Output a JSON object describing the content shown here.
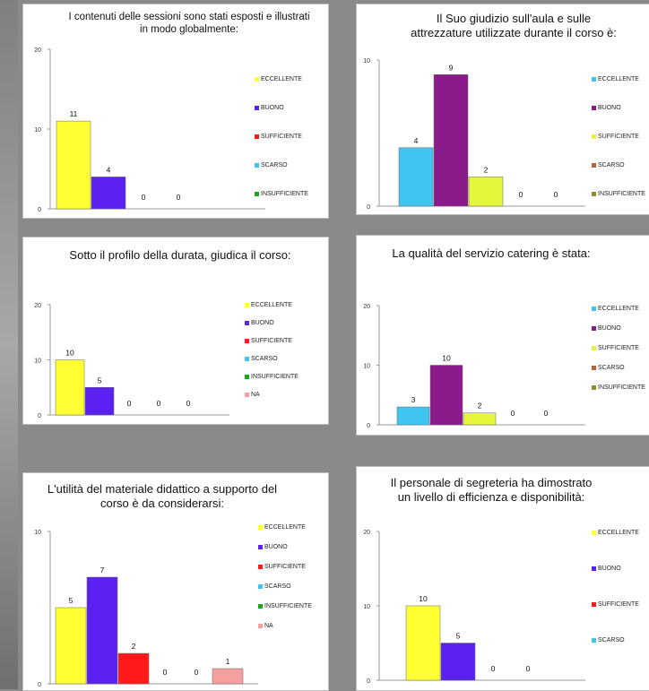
{
  "colors": {
    "ECCELLENTE": "#ffff33",
    "BUONO": "#5b21f0",
    "SUFFICIENTE": "#ff1a1a",
    "SCARSO": "#3ec6f0",
    "INSUFFICIENTE": "#1aa81a",
    "NA": "#f4a0a0",
    "violet": "#8b1a8b",
    "lime": "#e5f53a",
    "brown": "#b0653a",
    "olive": "#8c8c2a"
  },
  "chart_data": [
    {
      "type": "bar",
      "title": "I contenuti delle sessioni sono stati esposti e illustrati in modo globalmente:",
      "ylim": [
        0,
        20
      ],
      "yticks": [
        0,
        10,
        20
      ],
      "values": [
        11,
        4,
        0,
        0
      ],
      "bar_colors": [
        "#ffff33",
        "#5b21f0",
        "#ff1a1a",
        "#3ec6f0"
      ],
      "legend": [
        {
          "label": "ECCELLENTE",
          "color": "#ffff33"
        },
        {
          "label": "BUONO",
          "color": "#5b21f0"
        },
        {
          "label": "SUFFICIENTE",
          "color": "#ff1a1a"
        },
        {
          "label": "SCARSO",
          "color": "#3ec6f0"
        },
        {
          "label": "INSUFFICIENTE",
          "color": "#1aa81a"
        }
      ]
    },
    {
      "type": "bar",
      "title": "Il Suo giudizio sull'aula e sulle attrezzature utilizzate durante il corso è:",
      "ylim": [
        0,
        10
      ],
      "yticks": [
        0,
        10
      ],
      "values": [
        4,
        9,
        2,
        0,
        0
      ],
      "bar_colors": [
        "#3ec6f0",
        "#8b1a8b",
        "#e5f53a",
        "#b0653a",
        "#8c8c2a"
      ],
      "legend": [
        {
          "label": "ECCELLENTE",
          "color": "#3ec6f0"
        },
        {
          "label": "BUONO",
          "color": "#8b1a8b"
        },
        {
          "label": "SUFFICIENTE",
          "color": "#e5f53a"
        },
        {
          "label": "SCARSO",
          "color": "#b0653a"
        },
        {
          "label": "INSUFFICIENTE",
          "color": "#8c8c2a"
        }
      ]
    },
    {
      "type": "bar",
      "title": "Sotto il profilo della durata, giudica il corso:",
      "ylim": [
        0,
        20
      ],
      "yticks": [
        0,
        10,
        20
      ],
      "values": [
        10,
        5,
        0,
        0,
        0
      ],
      "bar_colors": [
        "#ffff33",
        "#5b21f0",
        "#ff1a1a",
        "#3ec6f0",
        "#f4a0a0"
      ],
      "legend": [
        {
          "label": "ECCELLENTE",
          "color": "#ffff33"
        },
        {
          "label": "BUONO",
          "color": "#5b21f0"
        },
        {
          "label": "SUFFICIENTE",
          "color": "#ff1a1a"
        },
        {
          "label": "SCARSO",
          "color": "#3ec6f0"
        },
        {
          "label": "INSUFFICIENTE",
          "color": "#1aa81a"
        },
        {
          "label": "NA",
          "color": "#f4a0a0"
        }
      ]
    },
    {
      "type": "bar",
      "title": "La qualità del servizio catering è stata:",
      "ylim": [
        0,
        20
      ],
      "yticks": [
        0,
        10,
        20
      ],
      "values": [
        3,
        10,
        2,
        0,
        0
      ],
      "bar_colors": [
        "#3ec6f0",
        "#8b1a8b",
        "#e5f53a",
        "#b0653a",
        "#8c8c2a"
      ],
      "legend": [
        {
          "label": "ECCELLENTE",
          "color": "#3ec6f0"
        },
        {
          "label": "BUONO",
          "color": "#8b1a8b"
        },
        {
          "label": "SUFFICIENTE",
          "color": "#e5f53a"
        },
        {
          "label": "SCARSO",
          "color": "#b0653a"
        },
        {
          "label": "INSUFFICIENTE",
          "color": "#8c8c2a"
        }
      ]
    },
    {
      "type": "bar",
      "title": "L'utilità del materiale didattico a supporto del corso è da considerarsi:",
      "ylim": [
        0,
        10
      ],
      "yticks": [
        0,
        10
      ],
      "values": [
        5,
        7,
        2,
        0,
        0,
        1
      ],
      "bar_colors": [
        "#ffff33",
        "#5b21f0",
        "#ff1a1a",
        "#3ec6f0",
        "#1aa81a",
        "#f4a0a0"
      ],
      "legend": [
        {
          "label": "ECCELLENTE",
          "color": "#ffff33"
        },
        {
          "label": "BUONO",
          "color": "#5b21f0"
        },
        {
          "label": "SUFFICIENTE",
          "color": "#ff1a1a"
        },
        {
          "label": "SCARSO",
          "color": "#3ec6f0"
        },
        {
          "label": "INSUFFICIENTE",
          "color": "#1aa81a"
        },
        {
          "label": "NA",
          "color": "#f4a0a0"
        }
      ]
    },
    {
      "type": "bar",
      "title": "Il personale di segreteria ha dimostrato un livello di efficienza e disponibilità:",
      "ylim": [
        0,
        20
      ],
      "yticks": [
        0,
        10,
        20
      ],
      "values": [
        10,
        5,
        0,
        0
      ],
      "bar_colors": [
        "#ffff33",
        "#5b21f0",
        "#ff1a1a",
        "#3ec6f0"
      ],
      "legend": [
        {
          "label": "ECCELLENTE",
          "color": "#ffff33"
        },
        {
          "label": "BUONO",
          "color": "#5b21f0"
        },
        {
          "label": "SUFFICIENTE",
          "color": "#ff1a1a"
        },
        {
          "label": "SCARSO",
          "color": "#3ec6f0"
        }
      ]
    }
  ]
}
